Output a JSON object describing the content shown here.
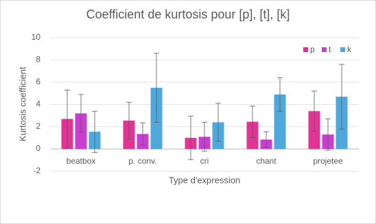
{
  "chart_data": {
    "type": "bar",
    "title": "Coefficient de kurtosis pour [p], [t], [k]",
    "x_label": "Type d'expression",
    "y_label": "Kurtosis coefficient",
    "categories": [
      "beatbox",
      "p. conv.",
      "cri",
      "chant",
      "projetee"
    ],
    "series": [
      {
        "name": "p",
        "color": "#e03594",
        "values": [
          2.7,
          2.55,
          1.0,
          2.45,
          3.4
        ],
        "errors": [
          2.6,
          1.65,
          1.95,
          1.4,
          1.8
        ]
      },
      {
        "name": "t",
        "color": "#c83fd0",
        "values": [
          3.2,
          1.35,
          1.1,
          0.85,
          1.3
        ],
        "errors": [
          1.7,
          1.0,
          1.3,
          0.7,
          1.4
        ]
      },
      {
        "name": "k",
        "color": "#4ea8dc",
        "values": [
          1.55,
          5.5,
          2.4,
          4.9,
          4.7
        ],
        "errors": [
          1.85,
          3.1,
          1.7,
          1.5,
          2.9
        ]
      }
    ],
    "ylim": [
      -2,
      10
    ],
    "yticks": [
      -2,
      0,
      2,
      4,
      6,
      8,
      10
    ],
    "grid": true,
    "legend": "top-right"
  }
}
